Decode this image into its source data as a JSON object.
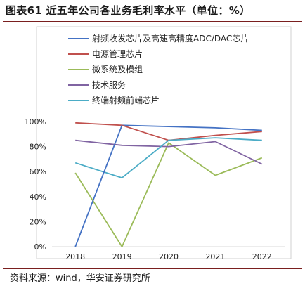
{
  "figure": {
    "title": "图表61 近五年公司各业务毛利率水平（单位：%）",
    "source": "资料来源：wind，华安证券研究所"
  },
  "chart_data": {
    "type": "line",
    "x": [
      "2018",
      "2019",
      "2020",
      "2021",
      "2022"
    ],
    "ylim": [
      0,
      100
    ],
    "yticks": [
      "0%",
      "20%",
      "40%",
      "60%",
      "80%",
      "100%"
    ],
    "grid": false,
    "legend_position": "top",
    "series": [
      {
        "name": "射频收发芯片及高速高精度ADC/DAC芯片",
        "color": "#4472c4",
        "values": [
          null,
          97,
          96,
          95,
          93
        ]
      },
      {
        "name": "电源管理芯片",
        "color": "#c0504d",
        "values": [
          99,
          97,
          85,
          89,
          92
        ]
      },
      {
        "name": "微系统及模组",
        "color": "#9bbb59",
        "values": [
          59,
          0,
          83,
          57,
          71
        ]
      },
      {
        "name": "技术服务",
        "color": "#8064a2",
        "values": [
          85,
          81,
          80,
          84,
          66
        ]
      },
      {
        "name": "终端射频前端芯片",
        "color": "#4bacc6",
        "values": [
          67,
          55,
          85,
          87,
          85
        ]
      }
    ],
    "extra_segment": {
      "series": 0,
      "from": {
        "x": "2018",
        "y": 0
      },
      "to": {
        "x": "2019",
        "y": 97
      }
    }
  }
}
